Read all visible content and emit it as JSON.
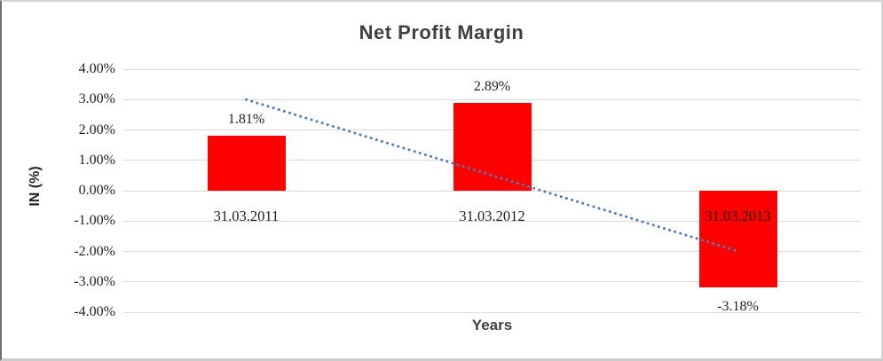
{
  "chart_data": {
    "type": "bar",
    "title": "Net Profit Margin",
    "xlabel": "Years",
    "ylabel": "IN (%)",
    "categories": [
      "31.03.2011",
      "31.03.2012",
      "31.03.2013"
    ],
    "values": [
      1.81,
      2.89,
      -3.18
    ],
    "data_labels": [
      "1.81%",
      "2.89%",
      "-3.18%"
    ],
    "yticks": [
      "4.00%",
      "3.00%",
      "2.00%",
      "1.00%",
      "0.00%",
      "-1.00%",
      "-2.00%",
      "-3.00%",
      "-4.00%"
    ],
    "ytick_values": [
      4,
      3,
      2,
      1,
      0,
      -1,
      -2,
      -3,
      -4
    ],
    "ylim": [
      -4,
      4
    ],
    "grid": true,
    "legend": "none",
    "colors": {
      "bar": "#ff0000",
      "trendline": "#4a7ebb",
      "gridline": "#d9d9d9",
      "title_text": "#404040",
      "label_text": "#1f1f1f"
    },
    "trendline": {
      "type": "linear",
      "style": "dotted",
      "start_value_pct": 3.0,
      "end_value_pct": -1.99
    }
  }
}
